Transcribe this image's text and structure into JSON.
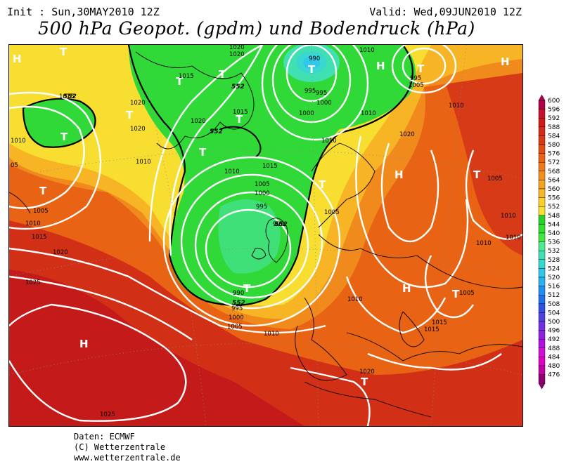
{
  "header": {
    "init": "Init : Sun,30MAY2010 12Z",
    "valid": "Valid: Wed,09JUN2010 12Z",
    "title": "500 hPa Geopot. (gpdm) und Bodendruck (hPa)"
  },
  "credits": {
    "line1": "Daten: ECMWF",
    "line2": "(C) Wetterzentrale",
    "line3": "www.wetterzentrale.de"
  },
  "colorscale": {
    "levels": [
      "600",
      "596",
      "592",
      "588",
      "584",
      "580",
      "576",
      "572",
      "568",
      "564",
      "560",
      "556",
      "552",
      "548",
      "544",
      "540",
      "536",
      "532",
      "528",
      "524",
      "520",
      "516",
      "512",
      "508",
      "504",
      "500",
      "496",
      "492",
      "488",
      "484",
      "480",
      "476"
    ],
    "colors": [
      "#b0004a",
      "#c8102e",
      "#d01a1a",
      "#d42a18",
      "#d83a16",
      "#e04e14",
      "#e86414",
      "#ef7a1a",
      "#f2901e",
      "#f5a422",
      "#f8b826",
      "#fad02a",
      "#f8e030",
      "#28d028",
      "#30e030",
      "#40e840",
      "#50e890",
      "#40e0b0",
      "#38d8d0",
      "#30c8e8",
      "#28b0f0",
      "#2090f0",
      "#2070e8",
      "#3050e0",
      "#5040e0",
      "#7030e0",
      "#9020e0",
      "#b010e0",
      "#d010d0",
      "#e000c0",
      "#c000a0",
      "#900070"
    ]
  },
  "map": {
    "high_labels": [
      "H",
      "H",
      "H",
      "H",
      "H",
      "H"
    ],
    "low_labels": [
      "T",
      "T",
      "T",
      "T",
      "T",
      "T",
      "T",
      "T",
      "T",
      "T",
      "T",
      "T",
      "T",
      "T",
      "T"
    ],
    "isobar_labels": [
      "1020",
      "1020",
      "1015",
      "1015",
      "1020",
      "1020",
      "1020",
      "1010",
      "05",
      "1005",
      "1010",
      "1015",
      "1020",
      "1025",
      "1025",
      "1015",
      "1015",
      "1020",
      "1010",
      "1005",
      "1000",
      "995",
      "990",
      "1000",
      "995",
      "1005",
      "1000",
      "995",
      "1005",
      "1010",
      "1010",
      "1005",
      "1010",
      "1010",
      "1010",
      "1015",
      "1015",
      "1010",
      "1020",
      "1005",
      "1010",
      "1010",
      "1010",
      "1010",
      "990",
      "995",
      "1005",
      "990",
      "995",
      "1000"
    ],
    "gpdm_labels": [
      "552",
      "552",
      "552",
      "552",
      "552"
    ]
  }
}
